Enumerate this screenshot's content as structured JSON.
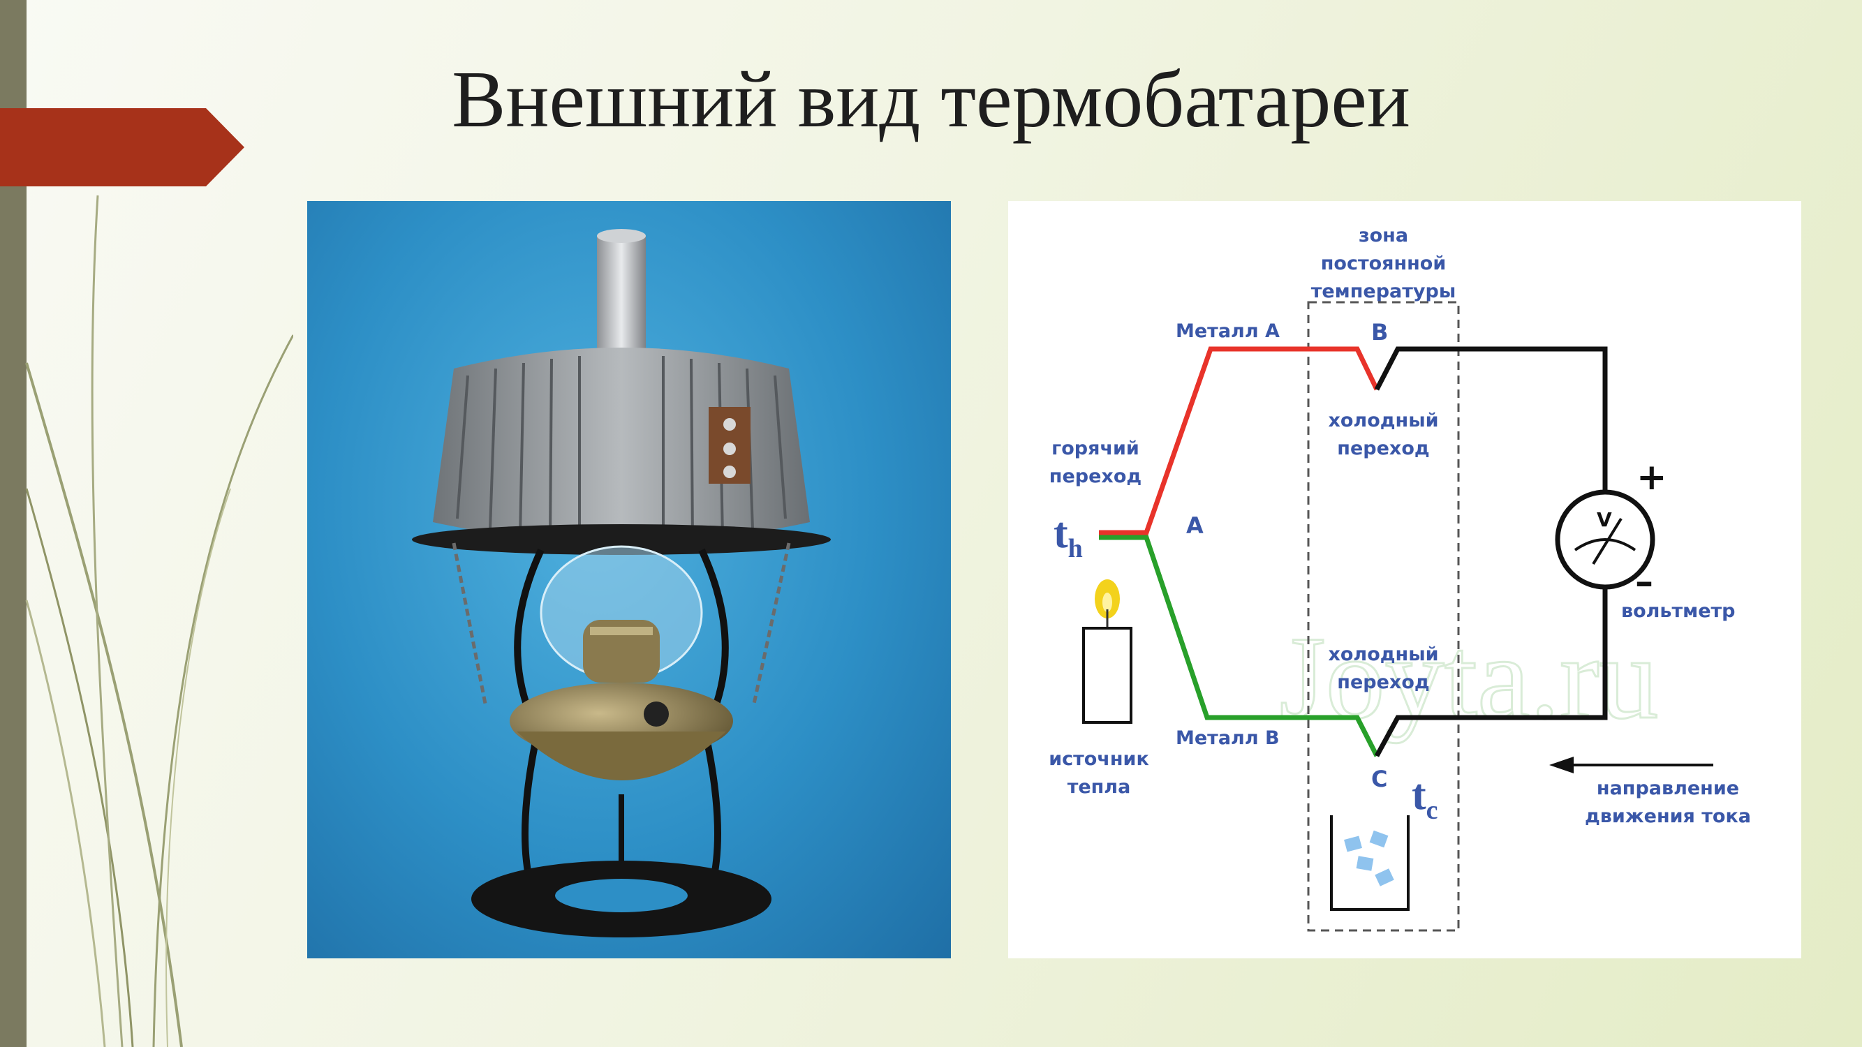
{
  "slide": {
    "title": "Внешний вид термобатареи"
  },
  "diagram": {
    "zone_label": [
      "зона",
      "постоянной",
      "температуры"
    ],
    "metal_a": "Металл A",
    "metal_b": "Металл B",
    "point_a": "A",
    "point_b": "B",
    "point_c": "C",
    "hot_junction": [
      "горячий",
      "переход"
    ],
    "cold_junction_top": [
      "холодный",
      "переход"
    ],
    "cold_junction_bottom": [
      "холодный",
      "переход"
    ],
    "heat_source": [
      "источник",
      "тепла"
    ],
    "t_hot": "t",
    "t_hot_sub": "h",
    "t_cold": "t",
    "t_cold_sub": "c",
    "plus": "+",
    "minus": "–",
    "voltmeter": "вольтметр",
    "voltmeter_symbol": "V",
    "current_direction": [
      "направление",
      "движения тока"
    ],
    "watermark": "Joyta.ru",
    "colors": {
      "metal_a_wire": "#e8332a",
      "metal_b_wire": "#28a02a",
      "copper_wire": "#111111",
      "label_text": "#3a57a8"
    }
  }
}
